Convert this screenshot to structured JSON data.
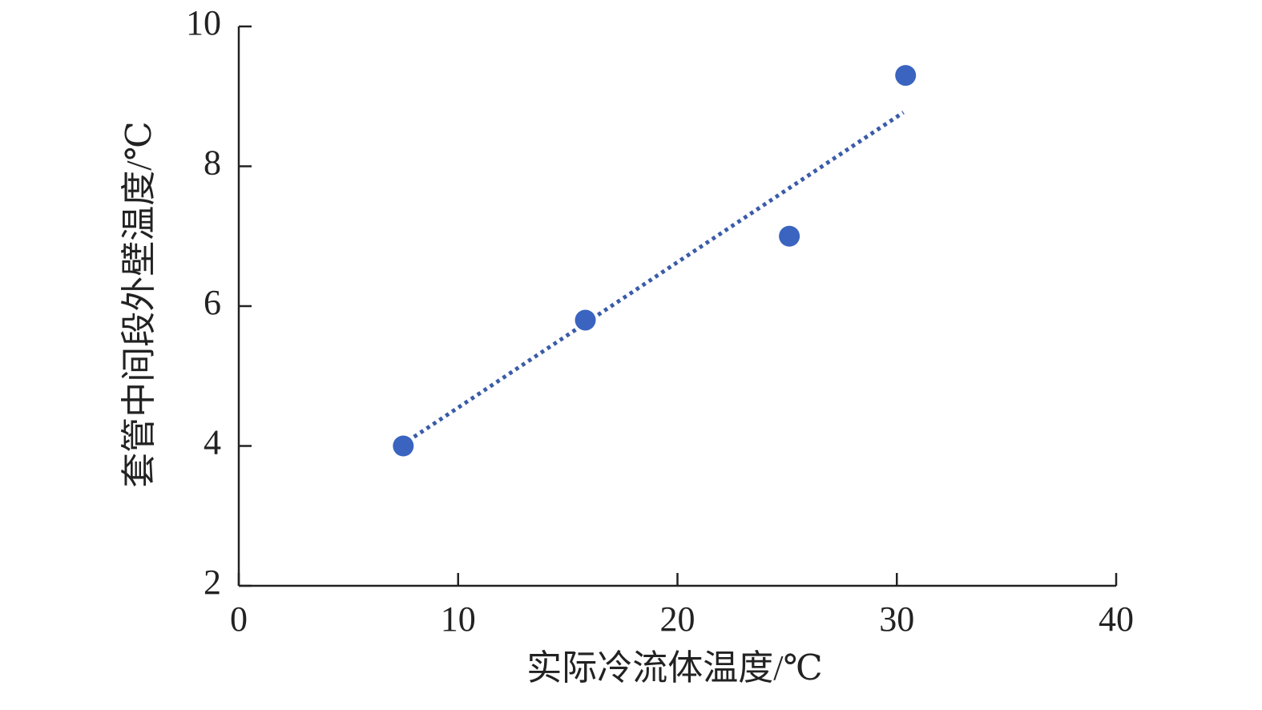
{
  "chart_data": {
    "type": "scatter",
    "x_label": "实际冷流体温度/℃",
    "y_label": "套管中间段外壁温度/℃",
    "x": [
      7.5,
      15.8,
      25.1,
      30.4
    ],
    "values": [
      4.0,
      5.8,
      7.0,
      9.3
    ],
    "color": "#3a64c0",
    "trendline": {
      "x": [
        7.7,
        30.3
      ],
      "values": [
        4.07,
        8.77
      ],
      "color": "#3a5ca8"
    },
    "xlim": [
      0,
      40
    ],
    "xticks": [
      0,
      10,
      20,
      30,
      40
    ],
    "ylim": [
      2,
      10
    ],
    "yticks": [
      2,
      4,
      6,
      8,
      10
    ],
    "grid": false
  }
}
